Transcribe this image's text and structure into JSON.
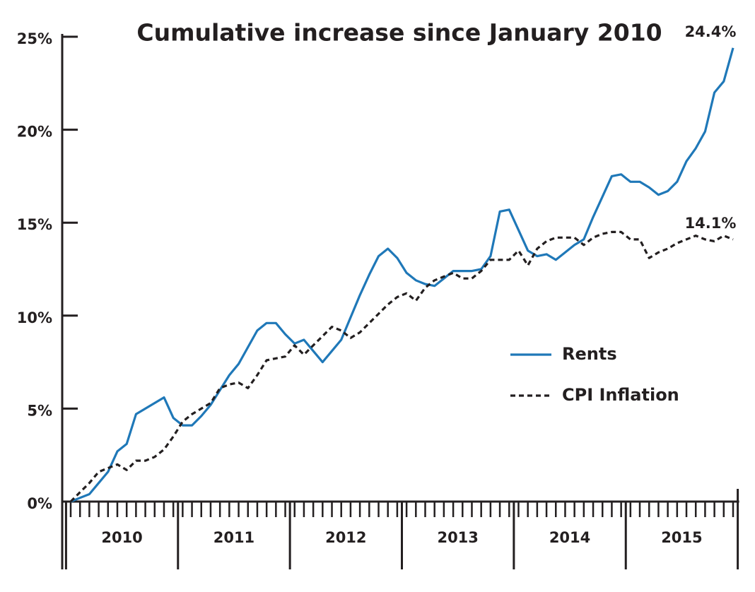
{
  "chart_data": {
    "type": "line",
    "title": "Cumulative increase since January 2010",
    "year_labels": [
      "2010",
      "2011",
      "2012",
      "2013",
      "2014",
      "2015"
    ],
    "categories": [
      null,
      null,
      null,
      null,
      null,
      null,
      null,
      null,
      null,
      null,
      null,
      null,
      null,
      null,
      null,
      null,
      null,
      null,
      null,
      null,
      null,
      null,
      null,
      null,
      null,
      null,
      null,
      null,
      null,
      null,
      null,
      null,
      null,
      null,
      null,
      null,
      null,
      null,
      null,
      null,
      null,
      null,
      null,
      null,
      null,
      null,
      null,
      null,
      null,
      null,
      null,
      null,
      null,
      null,
      null,
      null,
      null,
      null,
      null,
      null,
      null,
      null,
      null,
      null,
      null,
      null,
      null,
      null,
      null,
      null,
      null,
      null
    ],
    "series": [
      {
        "name": "Rents",
        "color": "#1f78b8",
        "dash": false,
        "end_label": "24.4%",
        "values": [
          0,
          0.2,
          0.4,
          1.0,
          1.6,
          2.7,
          3.1,
          4.7,
          5.0,
          5.3,
          5.6,
          4.5,
          4.1,
          4.1,
          4.6,
          5.2,
          6.0,
          6.8,
          7.4,
          8.3,
          9.2,
          9.6,
          9.6,
          9.0,
          8.5,
          8.7,
          8.1,
          7.5,
          8.1,
          8.7,
          9.9,
          11.1,
          12.2,
          13.2,
          13.6,
          13.1,
          12.3,
          11.9,
          11.7,
          11.6,
          12.0,
          12.4,
          12.4,
          12.4,
          12.5,
          13.2,
          15.6,
          15.7,
          14.6,
          13.5,
          13.2,
          13.3,
          13.0,
          13.4,
          13.8,
          14.1,
          15.3,
          16.4,
          17.5,
          17.6,
          17.2,
          17.2,
          16.9,
          16.5,
          16.7,
          17.2,
          18.3,
          19.0,
          19.9,
          22.0,
          22.6,
          24.4
        ]
      },
      {
        "name": "CPI Inflation",
        "color": "#231f20",
        "dash": true,
        "end_label": "14.1%",
        "values": [
          0,
          0.5,
          1.0,
          1.6,
          1.8,
          2.0,
          1.7,
          2.2,
          2.2,
          2.4,
          2.8,
          3.5,
          4.3,
          4.7,
          5.0,
          5.3,
          6.1,
          6.3,
          6.4,
          6.1,
          6.8,
          7.6,
          7.7,
          7.8,
          8.4,
          7.9,
          8.4,
          8.9,
          9.4,
          9.2,
          8.8,
          9.1,
          9.6,
          10.1,
          10.6,
          11.0,
          11.2,
          10.8,
          11.5,
          11.9,
          12.1,
          12.3,
          12.0,
          12.0,
          12.4,
          13.0,
          13.0,
          13.0,
          13.5,
          12.7,
          13.6,
          14.0,
          14.2,
          14.2,
          14.2,
          13.8,
          14.2,
          14.4,
          14.5,
          14.5,
          14.1,
          14.1,
          13.1,
          13.4,
          13.6,
          13.9,
          14.1,
          14.3,
          14.1,
          14.0,
          14.3,
          14.1
        ]
      }
    ],
    "ylim": [
      0,
      25
    ],
    "yticks": [
      {
        "value": 0,
        "label": "0%"
      },
      {
        "value": 5,
        "label": "5%"
      },
      {
        "value": 10,
        "label": "10%"
      },
      {
        "value": 15,
        "label": "15%"
      },
      {
        "value": 20,
        "label": "20%"
      },
      {
        "value": 25,
        "label": "25%"
      }
    ],
    "legend": "right"
  }
}
